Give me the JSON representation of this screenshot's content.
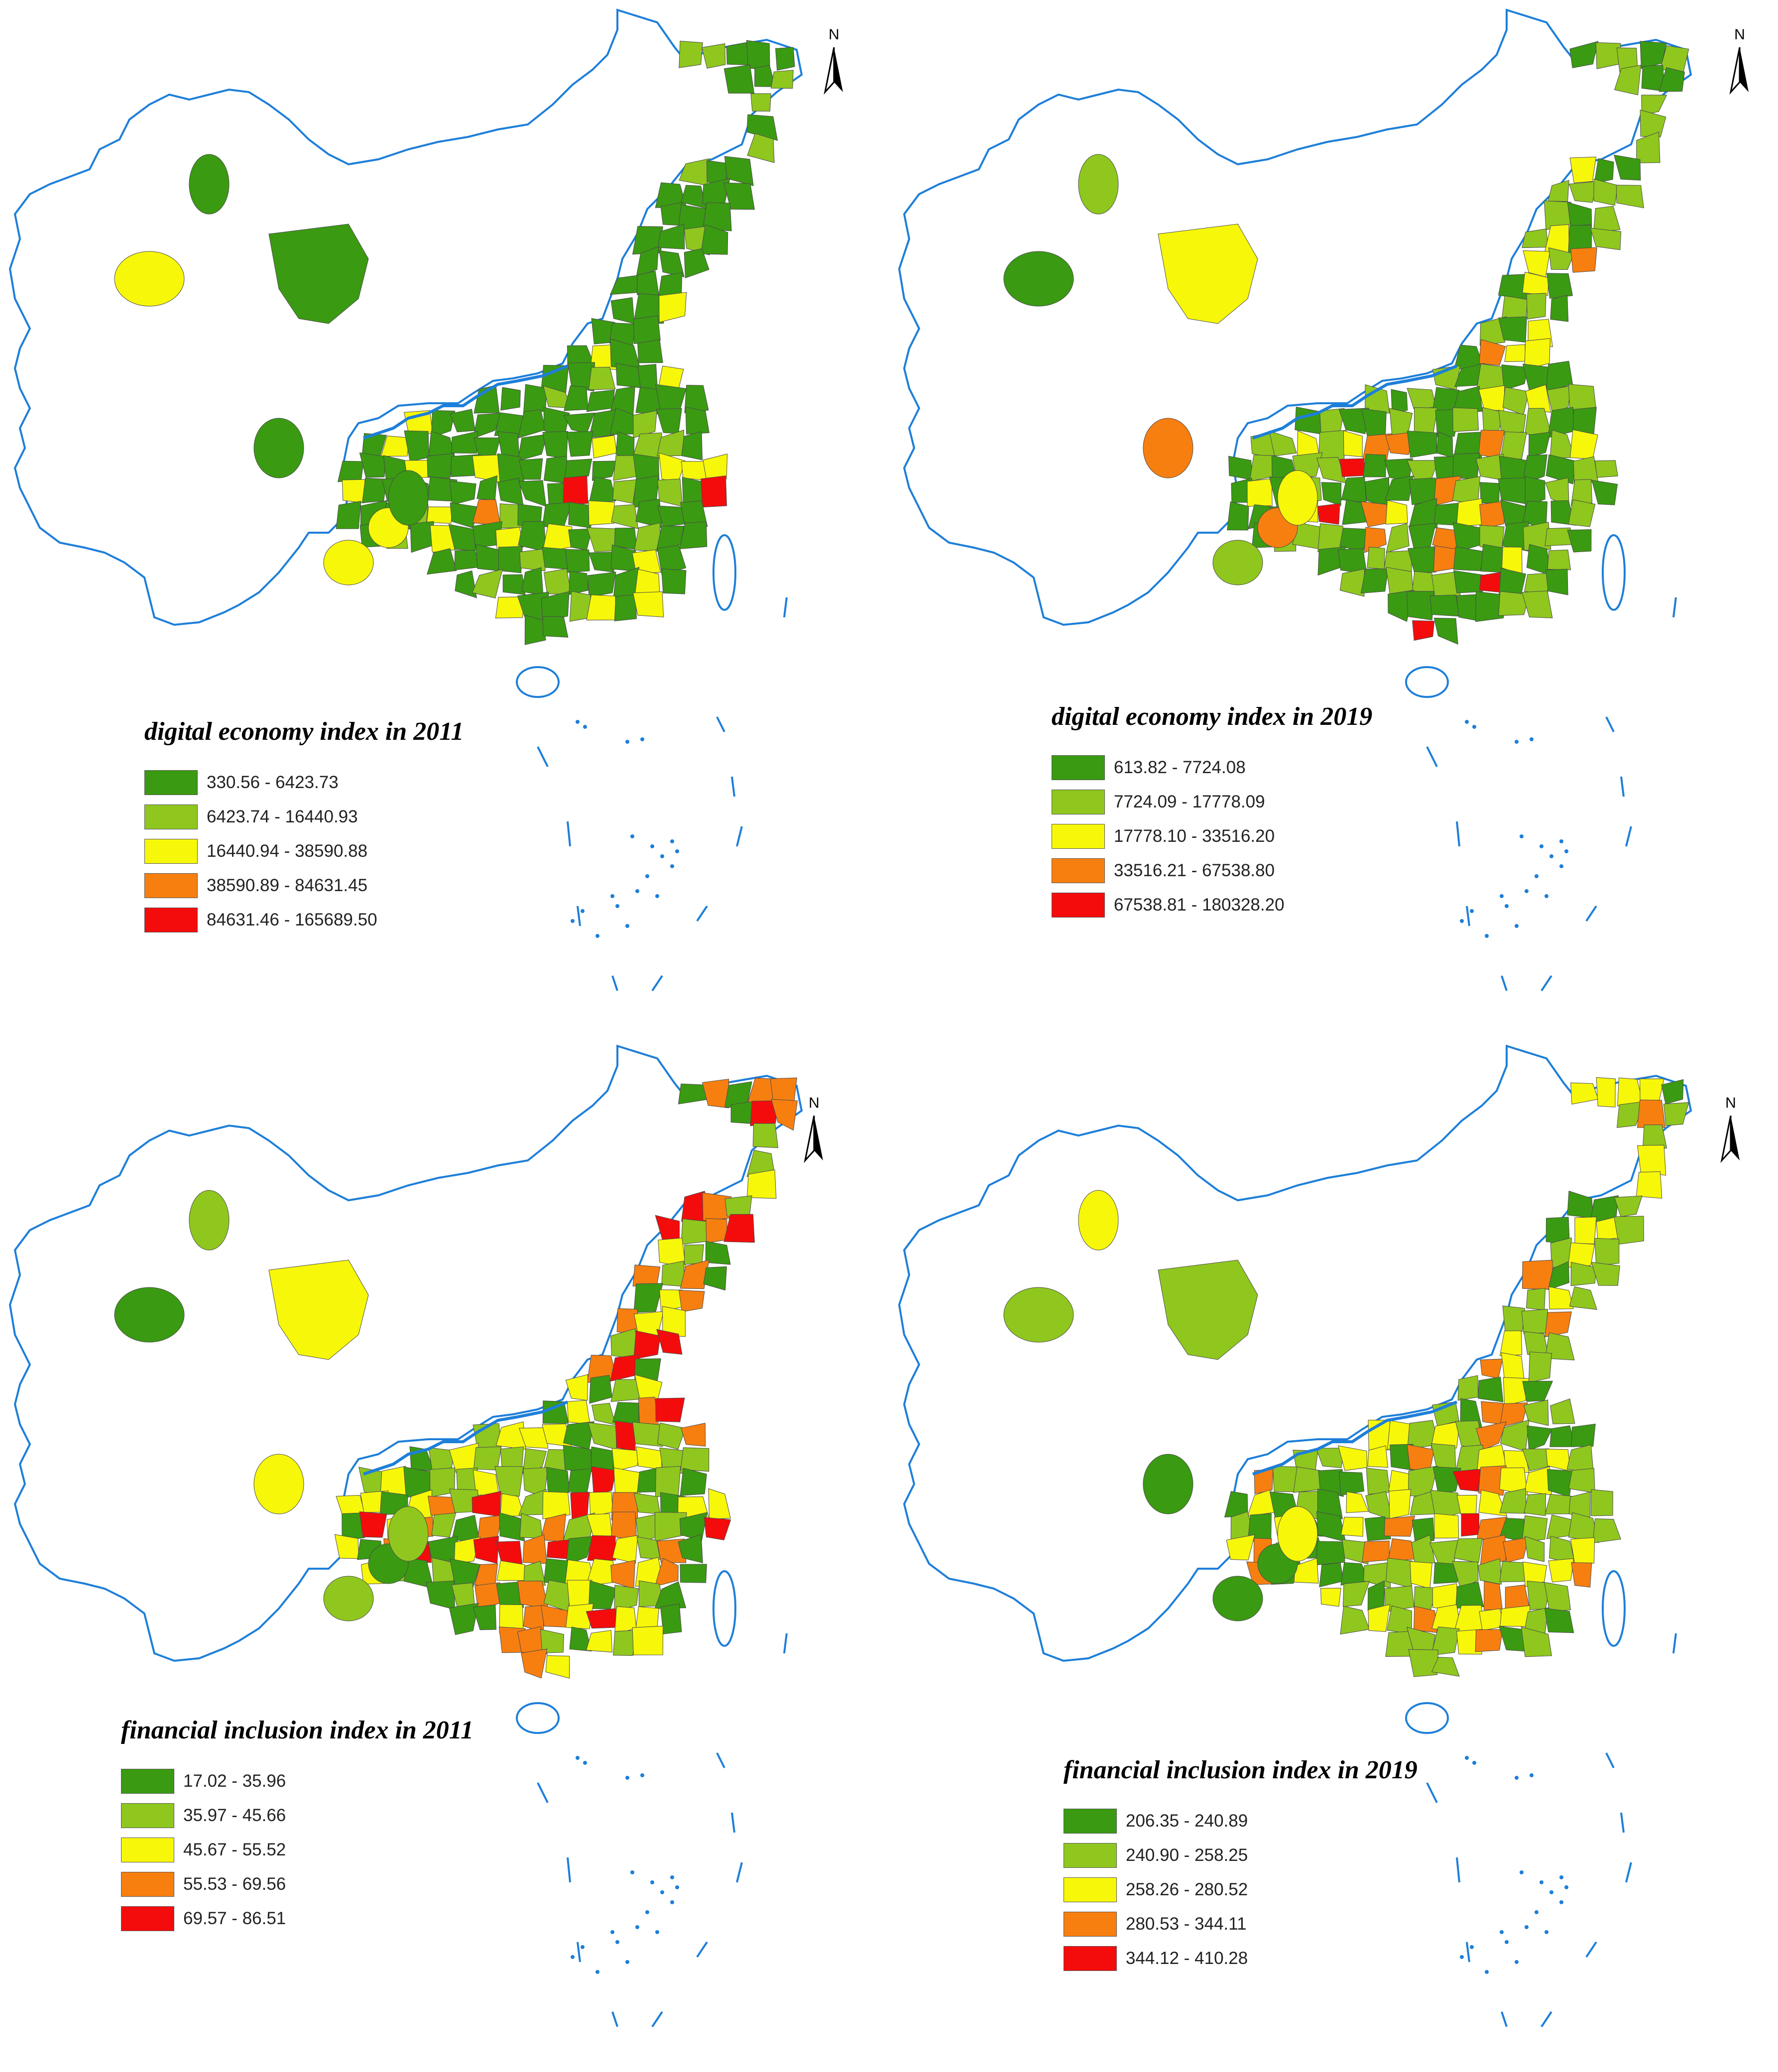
{
  "panels": [
    {
      "id": "de2011",
      "title": "digital economy index in 2011",
      "legend": [
        {
          "label": "330.56 - 6423.73",
          "color": "#3a9a12"
        },
        {
          "label": "6423.74 - 16440.93",
          "color": "#8fc71e"
        },
        {
          "label": "16440.94 - 38590.88",
          "color": "#f7f70a"
        },
        {
          "label": "38590.89 - 84631.45",
          "color": "#f77f10"
        },
        {
          "label": "84631.46 - 165689.50",
          "color": "#f40c0c"
        }
      ],
      "north_label": "N"
    },
    {
      "id": "de2019",
      "title": "digital economy index in 2019",
      "legend": [
        {
          "label": "613.82 - 7724.08",
          "color": "#3a9a12"
        },
        {
          "label": "7724.09 - 17778.09",
          "color": "#8fc71e"
        },
        {
          "label": "17778.10 - 33516.20",
          "color": "#f7f70a"
        },
        {
          "label": "33516.21 - 67538.80",
          "color": "#f77f10"
        },
        {
          "label": "67538.81 - 180328.20",
          "color": "#f40c0c"
        }
      ],
      "north_label": "N"
    },
    {
      "id": "fi2011",
      "title": "financial inclusion index in 2011",
      "legend": [
        {
          "label": "17.02 - 35.96",
          "color": "#3a9a12"
        },
        {
          "label": "35.97 - 45.66",
          "color": "#8fc71e"
        },
        {
          "label": "45.67 - 55.52",
          "color": "#f7f70a"
        },
        {
          "label": "55.53 - 69.56",
          "color": "#f77f10"
        },
        {
          "label": "69.57 - 86.51",
          "color": "#f40c0c"
        }
      ],
      "north_label": "N"
    },
    {
      "id": "fi2019",
      "title": "financial inclusion index in 2019",
      "legend": [
        {
          "label": "206.35 - 240.89",
          "color": "#3a9a12"
        },
        {
          "label": "240.90 - 258.25",
          "color": "#8fc71e"
        },
        {
          "label": "258.26 - 280.52",
          "color": "#f7f70a"
        },
        {
          "label": "280.53 - 344.11",
          "color": "#f77f10"
        },
        {
          "label": "344.12 - 410.28",
          "color": "#f40c0c"
        }
      ],
      "north_label": "N"
    }
  ],
  "colors": {
    "outline": "#1e7fd9",
    "boundary": "#4a4a4a",
    "background": "#ffffff"
  }
}
